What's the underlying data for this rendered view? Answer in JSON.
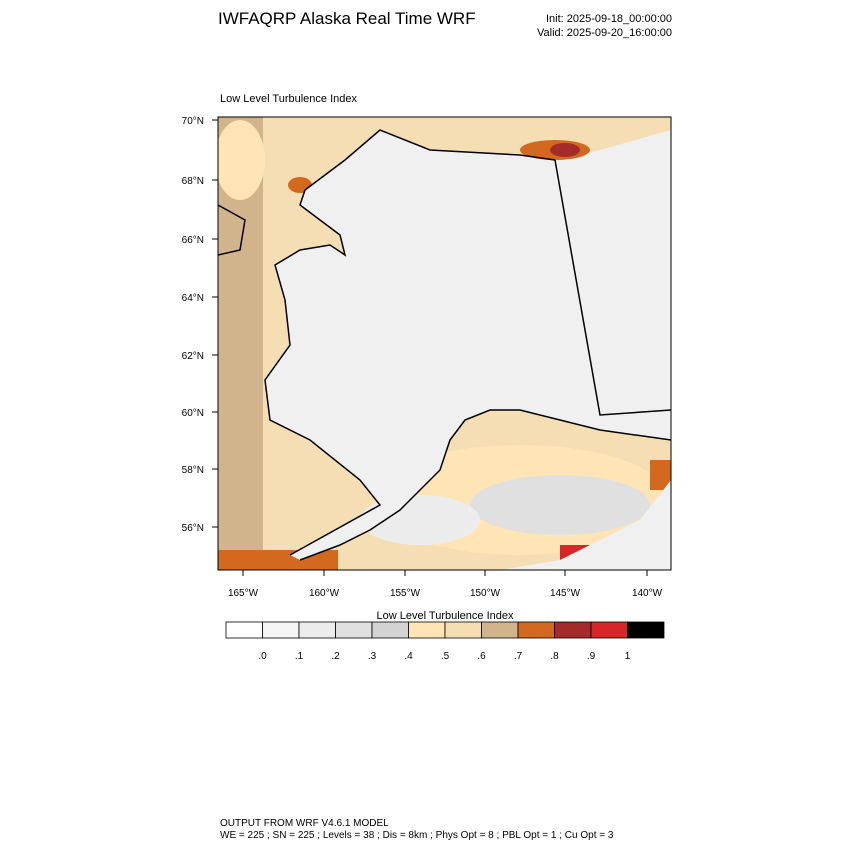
{
  "header": {
    "title": "IWFAQRP Alaska Real Time WRF",
    "init": "Init: 2025-09-18_00:00:00",
    "valid": "Valid: 2025-09-20_16:00:00"
  },
  "map": {
    "title": "Low Level Turbulence Index",
    "lat_labels": [
      "70°N",
      "68°N",
      "66°N",
      "64°N",
      "62°N",
      "60°N",
      "58°N",
      "56°N"
    ],
    "lon_labels": [
      "165°W",
      "160°W",
      "155°W",
      "150°W",
      "145°W",
      "140°W"
    ]
  },
  "colorbar": {
    "title": "Low Level Turbulence Index",
    "labels": [
      ".0",
      ".1",
      ".2",
      ".3",
      ".4",
      ".5",
      ".6",
      ".7",
      ".8",
      ".9",
      "1"
    ],
    "colors": [
      "#ffffff",
      "#f5f5f5",
      "#ececec",
      "#e0e0e0",
      "#d3d3d3",
      "#ffe4b5",
      "#f5deb3",
      "#d2b48c",
      "#d2691e",
      "#a52a2a",
      "#d62728",
      "#000000"
    ]
  },
  "footer": {
    "line1": "OUTPUT FROM WRF V4.6.1 MODEL",
    "line2": "WE = 225 ; SN = 225 ; Levels = 38 ; Dis = 8km ; Phys Opt = 8 ; PBL Opt = 1 ; Cu Opt = 3"
  }
}
